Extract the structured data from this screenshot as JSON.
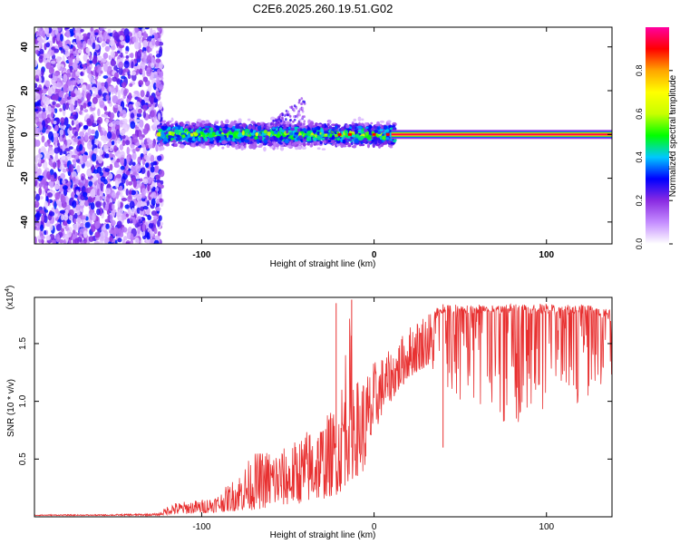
{
  "title": "C2E6.2025.260.19.51.G02",
  "chart_data": [
    {
      "type": "heatmap",
      "title": "C2E6.2025.260.19.51.G02",
      "xlabel": "Height of straight line (km)",
      "ylabel": "Frequency (Hz)",
      "xlim": [
        -197,
        138
      ],
      "ylim": [
        -50,
        49
      ],
      "xticks": [
        -100,
        0,
        100
      ],
      "yticks": [
        -40,
        -20,
        0,
        20,
        40
      ],
      "colorbar": {
        "label": "Normalized spectral amplitude",
        "range": [
          0,
          1
        ],
        "ticks": [
          "0.0",
          "0.2",
          "0.4",
          "0.6",
          "0.8"
        ],
        "colors": [
          "#ffffff",
          "#c48cff",
          "#8a2be2",
          "#0000ff",
          "#00c8ff",
          "#00ff00",
          "#c8ff00",
          "#ffff00",
          "#ffa500",
          "#ff0000",
          "#ff00a0"
        ]
      },
      "features": [
        {
          "name": "broadband-noise",
          "x_range": [
            -197,
            -123
          ],
          "freq_range": [
            -50,
            49
          ],
          "amplitude": 0.15
        },
        {
          "name": "scattered-band",
          "x_range": [
            -125,
            12
          ],
          "center_freq": 0,
          "half_width": 5,
          "amplitude": 0.45
        },
        {
          "name": "carrier-line",
          "x_range": [
            10,
            138
          ],
          "freq": 0,
          "amplitude": 0.95
        }
      ]
    },
    {
      "type": "line",
      "xlabel": "Height of straight line (km)",
      "ylabel": "SNR (10 * v/v)",
      "multiplier": "(x10",
      "multiplier_exp": "4",
      "xlim": [
        -197,
        138
      ],
      "ylim": [
        0,
        1.9
      ],
      "xticks": [
        -100,
        0,
        100
      ],
      "yticks": [
        "0.5",
        "1.0",
        "1.5"
      ],
      "ytick_values": [
        0.5,
        1.0,
        1.5
      ],
      "series": [
        {
          "name": "SNR",
          "color": "#e83030",
          "envelope": {
            "x": [
              -197,
              -160,
              -125,
              -118,
              -100,
              -90,
              -80,
              -70,
              -60,
              -50,
              -40,
              -30,
              -20,
              -15,
              -10,
              -5,
              0,
              5,
              10,
              15,
              20,
              25,
              30,
              35,
              40,
              60,
              80,
              100,
              120,
              138
            ],
            "low": [
              0.01,
              0.01,
              0.01,
              0.02,
              0.03,
              0.04,
              0.05,
              0.06,
              0.08,
              0.1,
              0.12,
              0.15,
              0.2,
              0.3,
              0.35,
              0.4,
              0.7,
              0.9,
              1.0,
              1.1,
              1.2,
              1.25,
              1.3,
              1.25,
              1.0,
              0.9,
              0.8,
              0.9,
              1.0,
              1.2
            ],
            "high": [
              0.02,
              0.02,
              0.03,
              0.12,
              0.15,
              0.2,
              0.35,
              0.55,
              0.6,
              0.6,
              0.75,
              0.85,
              1.0,
              1.85,
              1.2,
              1.25,
              1.35,
              1.4,
              1.45,
              1.55,
              1.65,
              1.72,
              1.78,
              1.82,
              1.84,
              1.84,
              1.84,
              1.84,
              1.84,
              1.8
            ]
          },
          "spikes": [
            {
              "x": -22,
              "y": 1.85
            },
            {
              "x": -13,
              "y": 1.88
            },
            {
              "x": 40,
              "y": 1.84
            }
          ]
        }
      ]
    }
  ]
}
